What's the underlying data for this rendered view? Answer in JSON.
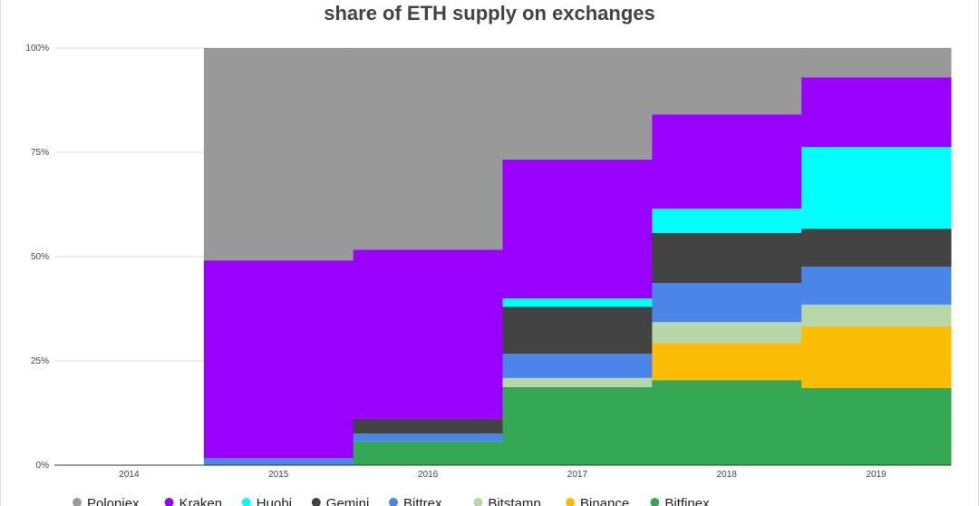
{
  "chart_data": {
    "type": "area",
    "stepped": true,
    "stacked": true,
    "title": "share of ETH supply on exchanges",
    "xlabel": "",
    "ylabel": "",
    "ylim": [
      0,
      100
    ],
    "y_ticks": [
      "0%",
      "25%",
      "50%",
      "75%",
      "100%"
    ],
    "y_tick_values": [
      0,
      25,
      50,
      75,
      100
    ],
    "categories": [
      "2014",
      "2015",
      "2016",
      "2017",
      "2018",
      "2019"
    ],
    "legend_position": "bottom",
    "grid": true,
    "series": [
      {
        "name": "Bitfinex",
        "color": "#34a853",
        "values": [
          0,
          0,
          5.7,
          18.7,
          20.4,
          18.5
        ]
      },
      {
        "name": "Binance",
        "color": "#fbbc04",
        "values": [
          0,
          0,
          0,
          0,
          8.9,
          14.8
        ]
      },
      {
        "name": "Bitstamp",
        "color": "#b7d7a8",
        "values": [
          0,
          0,
          0,
          2.2,
          5.0,
          5.2
        ]
      },
      {
        "name": "Bittrex",
        "color": "#4a86e8",
        "values": [
          0,
          1.7,
          1.9,
          5.8,
          9.4,
          9.1
        ]
      },
      {
        "name": "Gemini",
        "color": "#434343",
        "values": [
          0,
          0,
          3.5,
          11.3,
          12.0,
          9.1
        ]
      },
      {
        "name": "Huobi",
        "color": "#00ffff",
        "values": [
          0,
          0,
          0,
          2.0,
          5.8,
          19.6
        ]
      },
      {
        "name": "Kraken",
        "color": "#9900ff",
        "values": [
          0,
          47.4,
          40.6,
          33.3,
          22.6,
          16.7
        ]
      },
      {
        "name": "Poloniex",
        "color": "#999999",
        "values": [
          0,
          50.9,
          48.3,
          26.7,
          15.9,
          7.0
        ]
      }
    ],
    "legend_order": [
      "Poloniex",
      "Kraken",
      "Huobi",
      "Gemini",
      "Bittrex",
      "Bitstamp",
      "Binance",
      "Bitfinex"
    ]
  }
}
